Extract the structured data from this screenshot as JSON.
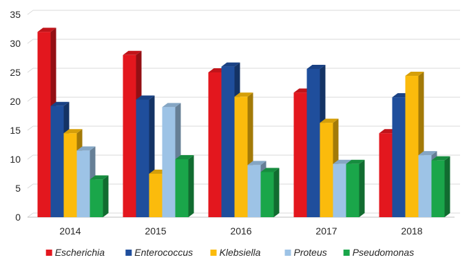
{
  "chart_data": {
    "type": "bar",
    "style": "3d-clustered-column",
    "categories": [
      "2014",
      "2015",
      "2016",
      "2017",
      "2018"
    ],
    "series": [
      {
        "name": "Escherichia",
        "color": "#e3171e",
        "values": [
          32.0,
          28.0,
          25.0,
          21.5,
          14.5
        ]
      },
      {
        "name": "Enterococcus",
        "color": "#1f4e9c",
        "values": [
          19.2,
          20.3,
          26.0,
          25.6,
          20.7
        ]
      },
      {
        "name": "Klebsiella",
        "color": "#fbbb0c",
        "values": [
          14.5,
          7.5,
          20.8,
          16.3,
          24.4
        ]
      },
      {
        "name": "Proteus",
        "color": "#9dc3e6",
        "values": [
          11.5,
          19.0,
          9.0,
          9.2,
          10.7
        ]
      },
      {
        "name": "Pseudomonas",
        "color": "#1aa64a",
        "values": [
          6.5,
          10.0,
          7.8,
          9.2,
          9.8
        ]
      }
    ],
    "ylim": [
      0,
      35
    ],
    "yticks": [
      "0",
      "5",
      "10",
      "15",
      "20",
      "25",
      "30",
      "35"
    ],
    "grid": true,
    "legend": "bottom",
    "title": "",
    "xlabel": "",
    "ylabel": ""
  }
}
